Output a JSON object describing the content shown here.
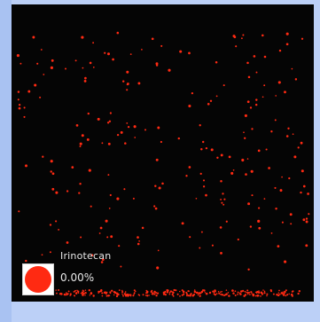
{
  "legend": {
    "drug_name": "Irinotecan",
    "percent_label": "0.00%",
    "swatch_color": "#ff2a12"
  },
  "colors": {
    "background": "#050505",
    "particle": "#ff2a12",
    "frame": "#bcd0f7"
  }
}
